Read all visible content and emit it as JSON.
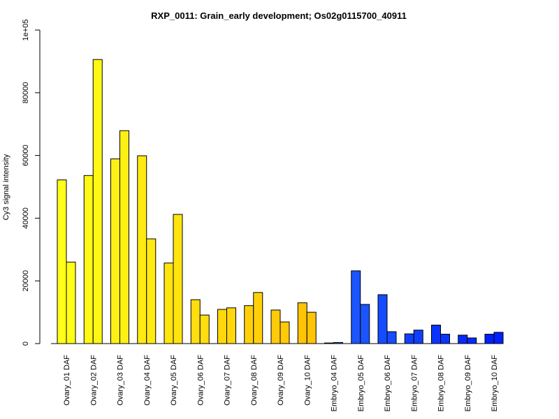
{
  "chart_data": {
    "type": "bar",
    "title": "RXP_0011: Grain_early development; Os02g0115700_40911",
    "xlabel": "",
    "ylabel": "Cy3 signal intensity",
    "ylim": [
      0,
      100000
    ],
    "yticks": [
      0,
      20000,
      40000,
      60000,
      80000,
      100000
    ],
    "ytick_labels": [
      "0",
      "20000",
      "40000",
      "60000",
      "80000",
      "1e+05"
    ],
    "grid": false,
    "legend": "none",
    "categories": [
      "Ovary_01 DAF",
      "Ovary_02 DAF",
      "Ovary_03 DAF",
      "Ovary_04 DAF",
      "Ovary_05 DAF",
      "Ovary_06 DAF",
      "Ovary_07 DAF",
      "Ovary_08 DAF",
      "Ovary_09 DAF",
      "Ovary_10 DAF",
      "Embryo_04 DAF",
      "Embryo_05 DAF",
      "Embryo_06 DAF",
      "Embryo_07 DAF",
      "Embryo_08 DAF",
      "Embryo_09 DAF",
      "Embryo_10 DAF"
    ],
    "group_colors": [
      "#FFFF1A",
      "#FFF716",
      "#FFF014",
      "#FFEA12",
      "#FFE410",
      "#FFDD0E",
      "#FFD70C",
      "#FFD00A",
      "#FFCA08",
      "#FFC406",
      "#1E5BFF",
      "#1A55FF",
      "#154CFF",
      "#1040FF",
      "#0B35FF",
      "#062AFF",
      "#0020FF"
    ],
    "series": [
      {
        "values": [
          52200,
          53600,
          58900,
          59900,
          25700,
          14000,
          10900,
          12100,
          10700,
          13000,
          200,
          23200,
          15600,
          3100,
          5900,
          2700,
          3000
        ]
      },
      {
        "values": [
          26000,
          90600,
          67900,
          33400,
          41200,
          9100,
          11400,
          16300,
          6900,
          10000,
          350,
          12500,
          3800,
          4300,
          3000,
          1800,
          3600
        ]
      }
    ]
  }
}
